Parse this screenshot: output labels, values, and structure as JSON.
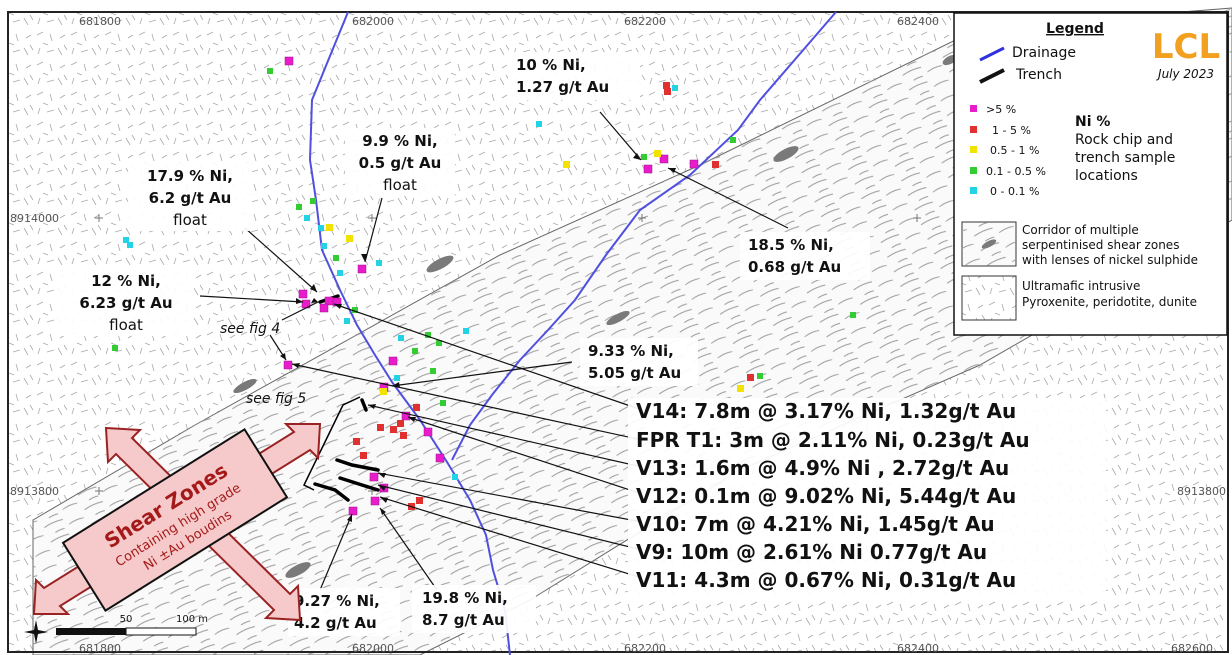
{
  "map": {
    "grid_labels": {
      "top": [
        "681800",
        "682000",
        "682200",
        "682400"
      ],
      "bottom": [
        "681800",
        "682000",
        "682200",
        "682400",
        "682600"
      ],
      "left": [
        "8914000",
        "8913800"
      ],
      "right": [
        "8913800"
      ]
    },
    "scale": {
      "mid": "50",
      "end": "100 m"
    },
    "legend": {
      "title": "Legend",
      "logo": "LCL",
      "date": "July 2023",
      "drainage": "Drainage",
      "trench": "Trench",
      "ni_title": "Ni %",
      "ni_desc": [
        "Rock chip and",
        "trench sample",
        "locations"
      ],
      "classes": [
        {
          "label": ">5 %",
          "color": "#e81ccb"
        },
        {
          "label": "1 - 5 %",
          "color": "#e03030"
        },
        {
          "label": "0.5 - 1 %",
          "color": "#f2e200"
        },
        {
          "label": "0.1 - 0.5 %",
          "color": "#33cc33"
        },
        {
          "label": "0 - 0.1 %",
          "color": "#22d3e6"
        }
      ],
      "corridor": [
        "Corridor of multiple",
        "serpentinised shear zones",
        "with lenses of nickel sulphide"
      ],
      "ultramafic": [
        "Ultramafic intrusive",
        "Pyroxenite, peridotite, dunite"
      ]
    },
    "callouts": {
      "c1": [
        "10 % Ni,",
        "1.27 g/t Au"
      ],
      "c2": [
        "9.9 % Ni,",
        "0.5 g/t Au",
        "float"
      ],
      "c3": [
        "17.9 % Ni,",
        "6.2 g/t Au",
        "float"
      ],
      "c4": [
        "18.5 % Ni,",
        "0.68 g/t Au"
      ],
      "c5": [
        "12 % Ni,",
        "6.23 g/t Au",
        "float"
      ],
      "c6": [
        "9.33 % Ni,",
        "5.05 g/t Au"
      ],
      "c7": [
        "9.27 % Ni,",
        "4.2 g/t Au"
      ],
      "c8": [
        "19.8 % Ni,",
        "8.7 g/t Au"
      ]
    },
    "see_fig4": "see fig 4",
    "see_fig5": "see fig 5",
    "intercepts": [
      "V14: 7.8m @ 3.17% Ni, 1.32g/t Au",
      "FPR T1: 3m @ 2.11% Ni, 0.23g/t Au",
      "V13: 1.6m @ 4.9% Ni , 2.72g/t Au",
      "V12: 0.1m @ 9.02% Ni, 5.44g/t Au",
      "V10: 7m @ 4.21% Ni, 1.45g/t Au",
      "V9: 10m @ 2.61% Ni 0.77g/t Au",
      "V11: 4.3m @ 0.67% Ni, 0.31g/t Au"
    ],
    "shear": {
      "title": "Shear Zones",
      "line1": "Containing high grade",
      "line2": "Ni ±Au boudins"
    }
  }
}
